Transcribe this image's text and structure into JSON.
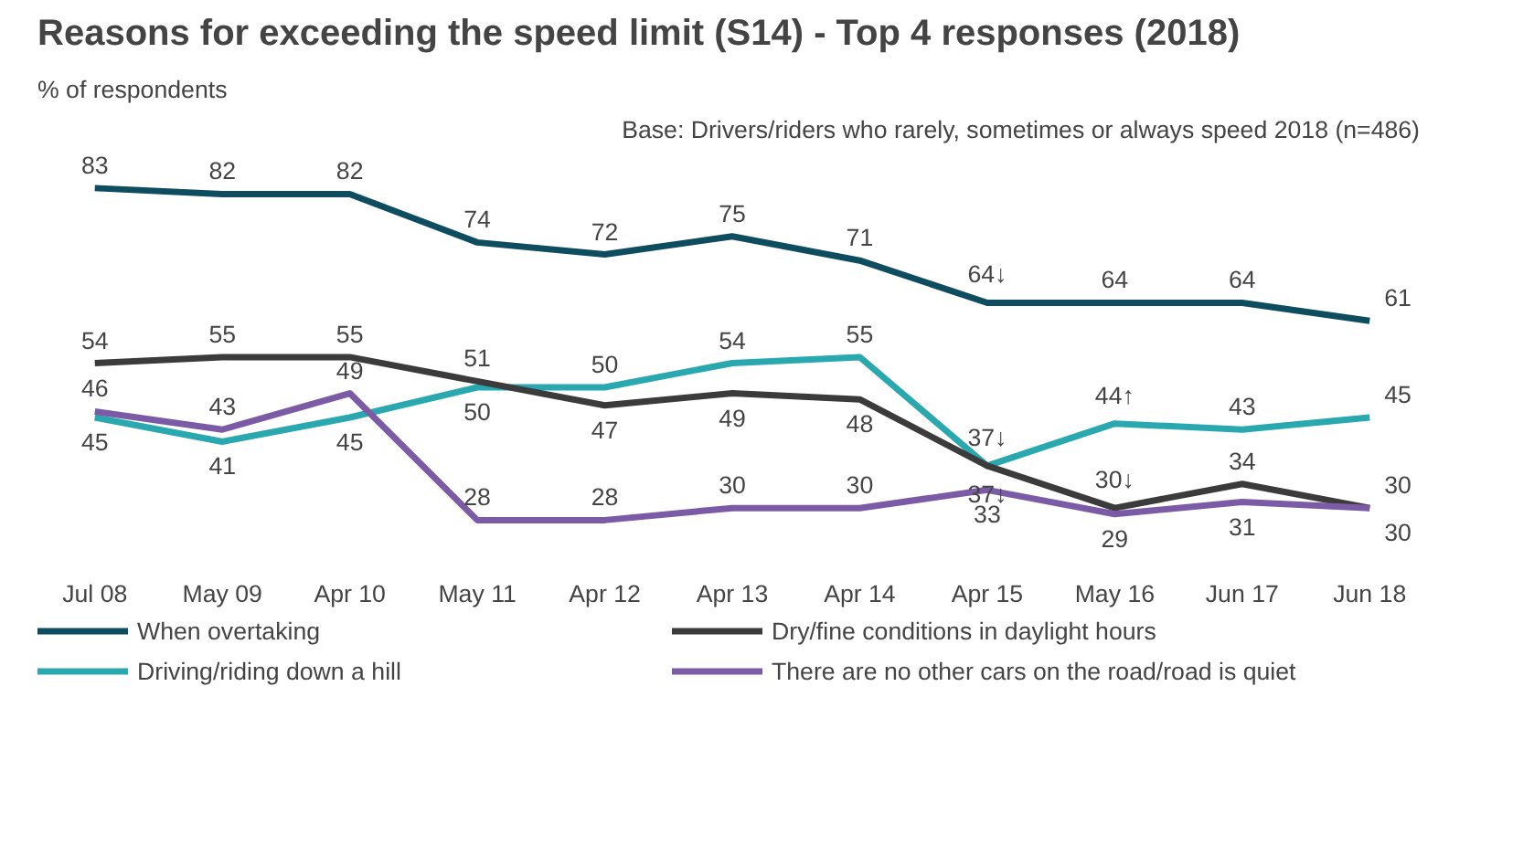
{
  "chart_data": {
    "type": "line",
    "title": "Reasons for exceeding the speed limit (S14) - Top 4 responses (2018)",
    "ylabel": "% of respondents",
    "annotations": [
      "Base: Drivers/riders who rarely, sometimes or always speed 2018 (n=486)"
    ],
    "categories": [
      "Jul 08",
      "May 09",
      "Apr 10",
      "May 11",
      "Apr 12",
      "Apr 13",
      "Apr 14",
      "Apr 15",
      "May 16",
      "Jun 17",
      "Jun 18"
    ],
    "series": [
      {
        "name": "When overtaking",
        "color": "#0e4d5f",
        "values": [
          83,
          82,
          82,
          74,
          72,
          75,
          71,
          64,
          64,
          64,
          61
        ],
        "value_labels": [
          "83",
          "82",
          "82",
          "74",
          "72",
          "75",
          "71",
          "64↓",
          "64",
          "64",
          "61"
        ]
      },
      {
        "name": "Driving/riding down a hill",
        "color": "#2aa8b0",
        "values": [
          45,
          41,
          45,
          50,
          50,
          54,
          55,
          37,
          44,
          43,
          45
        ],
        "value_labels": [
          "45",
          "41",
          "45",
          "50",
          "50",
          "54",
          "55",
          "37↓",
          "44↑",
          "43",
          "45"
        ]
      },
      {
        "name": "Dry/fine conditions in daylight hours",
        "color": "#3b3b3b",
        "values": [
          54,
          55,
          55,
          51,
          47,
          49,
          48,
          37,
          30,
          34,
          30
        ],
        "value_labels": [
          "54",
          "55",
          "55",
          "51",
          "47",
          "49",
          "48",
          "37↓",
          "30↓",
          "34",
          "30"
        ]
      },
      {
        "name": "There are no other cars on the road/road is quiet",
        "color": "#7b5ba6",
        "values": [
          46,
          43,
          49,
          28,
          28,
          30,
          30,
          33,
          29,
          31,
          30
        ],
        "value_labels": [
          "46",
          "43",
          "49",
          "28",
          "28",
          "30",
          "30",
          "33",
          "29",
          "31",
          "30"
        ]
      }
    ],
    "legend": "bottom",
    "marker": "none",
    "line_style": "solid"
  }
}
